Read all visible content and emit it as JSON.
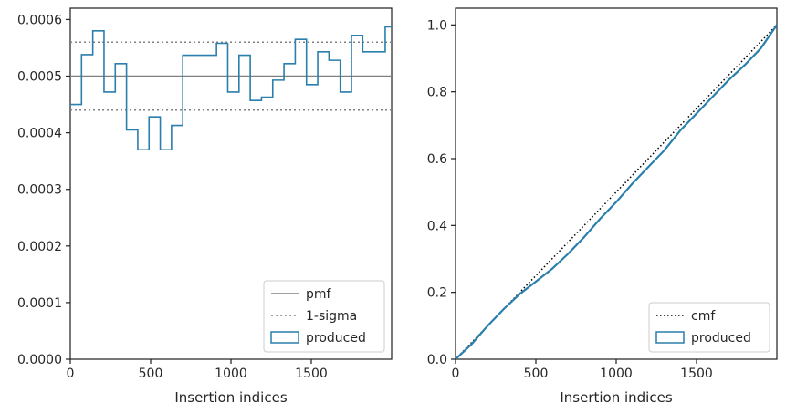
{
  "chart_data": [
    {
      "type": "line",
      "xlabel": "Insertion indices",
      "ylabel": "",
      "xlim": [
        0,
        2000
      ],
      "ylim": [
        0,
        0.00062
      ],
      "xticks": [
        0,
        500,
        1000,
        1500
      ],
      "xtick_labels": [
        "0",
        "500",
        "1000",
        "1500"
      ],
      "yticks": [
        0,
        0.0001,
        0.0002,
        0.0003,
        0.0004,
        0.0005,
        0.0006
      ],
      "ytick_labels": [
        "0.0000",
        "0.0001",
        "0.0002",
        "0.0003",
        "0.0004",
        "0.0005",
        "0.0006"
      ],
      "grid": false,
      "legend_position": "lower right",
      "pmf": {
        "name": "pmf",
        "value": 0.0005,
        "color": "#808080"
      },
      "sigma": {
        "name": "1-sigma",
        "values": [
          0.00044,
          0.00056
        ],
        "color": "#808080"
      },
      "produced": {
        "name": "produced",
        "style": "step-histogram",
        "color": "#2a7fac",
        "bin_edges": [
          0,
          70,
          140,
          210,
          280,
          350,
          420,
          490,
          560,
          630,
          700,
          770,
          840,
          910,
          980,
          1050,
          1120,
          1190,
          1260,
          1330,
          1400,
          1470,
          1540,
          1610,
          1680,
          1750,
          1820,
          1890,
          1960,
          2000
        ],
        "values": [
          0.00045,
          0.000538,
          0.00058,
          0.000472,
          0.000522,
          0.000405,
          0.00037,
          0.000428,
          0.00037,
          0.000413,
          0.000537,
          0.000537,
          0.000537,
          0.000558,
          0.000472,
          0.000537,
          0.000457,
          0.000463,
          0.000493,
          0.000522,
          0.000565,
          0.000485,
          0.000543,
          0.000528,
          0.000472,
          0.000572,
          0.000543,
          0.000543,
          0.000587
        ]
      }
    },
    {
      "type": "line",
      "xlabel": "Insertion indices",
      "ylabel": "",
      "xlim": [
        0,
        2000
      ],
      "ylim": [
        0,
        1.05
      ],
      "xticks": [
        0,
        500,
        1000,
        1500
      ],
      "xtick_labels": [
        "0",
        "500",
        "1000",
        "1500"
      ],
      "yticks": [
        0,
        0.2,
        0.4,
        0.6,
        0.8,
        1.0
      ],
      "ytick_labels": [
        "0.0",
        "0.2",
        "0.4",
        "0.6",
        "0.8",
        "1.0"
      ],
      "grid": false,
      "legend_position": "lower right",
      "cmf": {
        "name": "cmf",
        "x": [
          0,
          2000
        ],
        "y": [
          0,
          1.0
        ],
        "color": "#000000"
      },
      "produced": {
        "name": "produced",
        "color": "#2a7fac",
        "x": [
          0,
          100,
          200,
          300,
          400,
          500,
          600,
          700,
          800,
          900,
          1000,
          1100,
          1200,
          1300,
          1400,
          1500,
          1600,
          1700,
          1800,
          1900,
          2000
        ],
        "y": [
          0,
          0.045,
          0.1,
          0.15,
          0.195,
          0.232,
          0.27,
          0.315,
          0.365,
          0.42,
          0.47,
          0.525,
          0.575,
          0.625,
          0.685,
          0.735,
          0.785,
          0.835,
          0.88,
          0.93,
          1.0
        ]
      }
    }
  ]
}
